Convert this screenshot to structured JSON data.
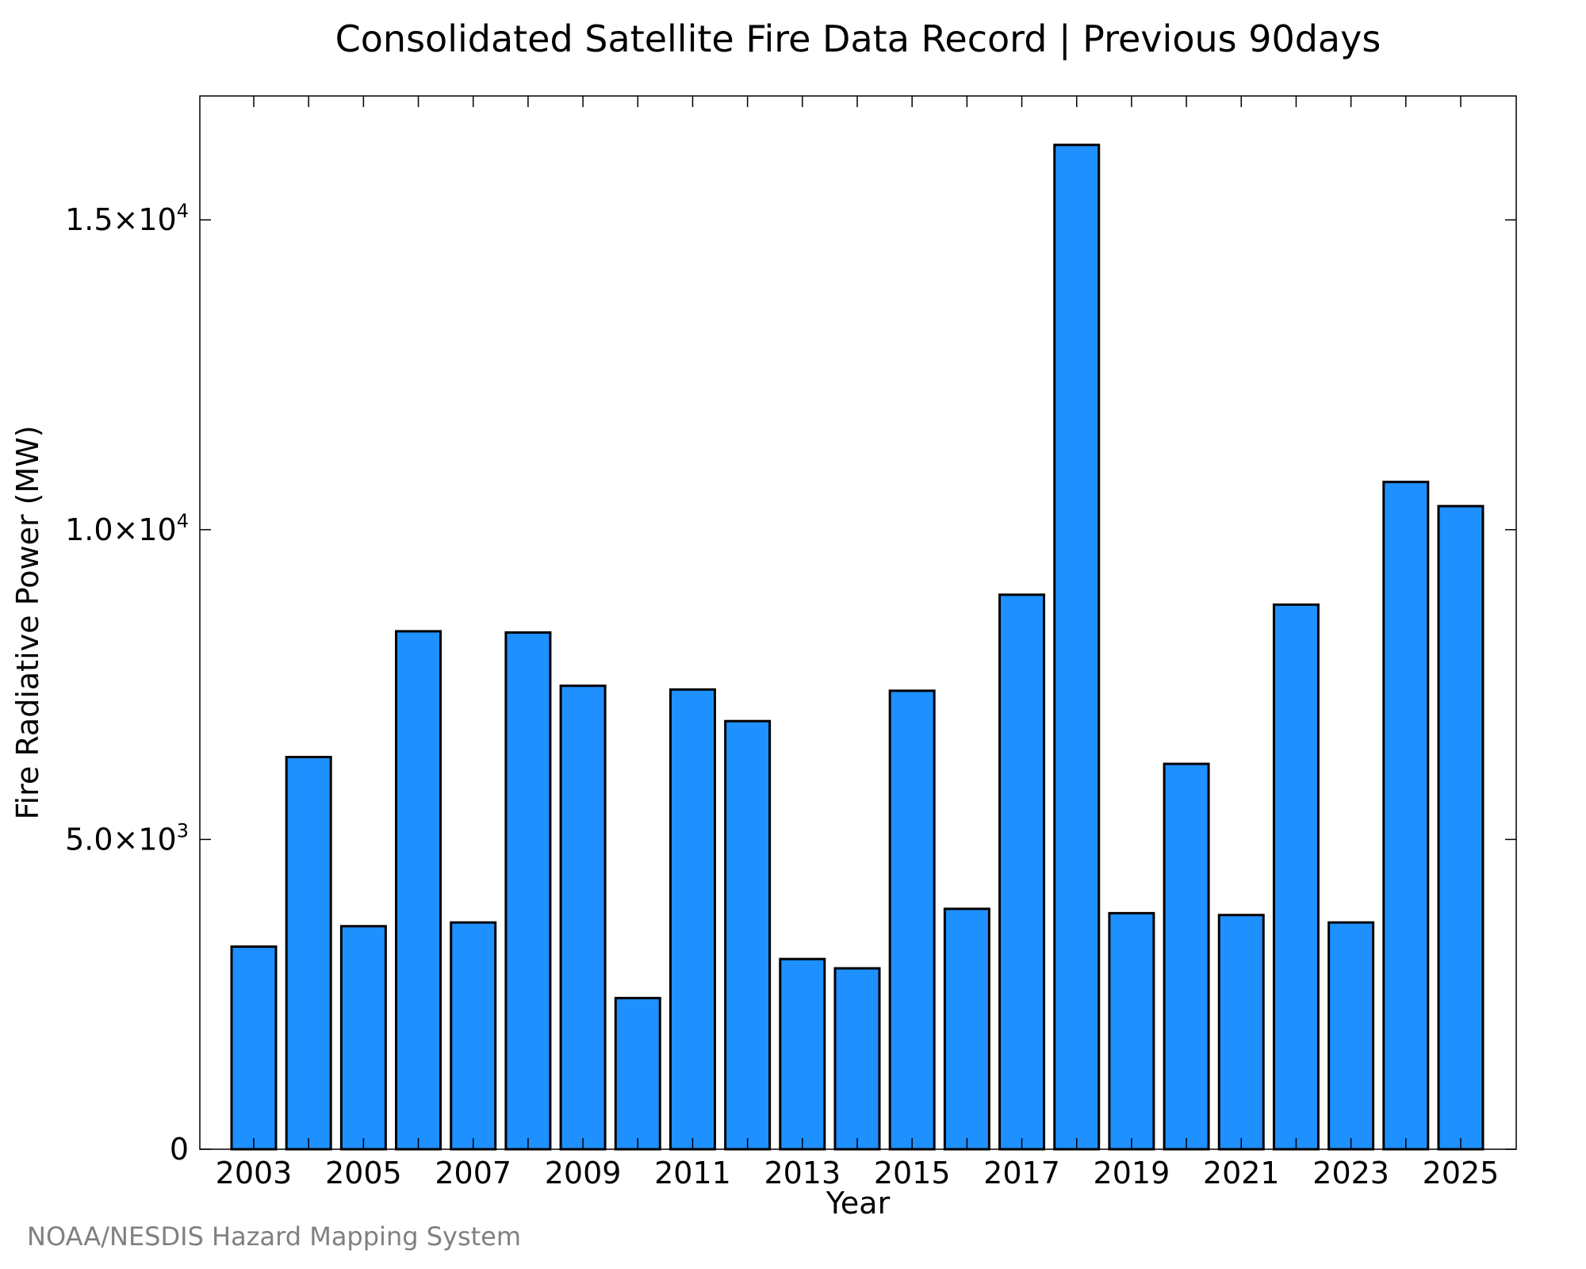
{
  "chart_data": {
    "type": "bar",
    "title": "Consolidated Satellite Fire Data Record | Previous 90days",
    "xlabel": "Year",
    "ylabel": "Fire Radiative Power (MW)",
    "categories": [
      "2003",
      "2004",
      "2005",
      "2006",
      "2007",
      "2008",
      "2009",
      "2010",
      "2011",
      "2012",
      "2013",
      "2014",
      "2015",
      "2016",
      "2017",
      "2018",
      "2019",
      "2020",
      "2021",
      "2022",
      "2023",
      "2024",
      "2025"
    ],
    "values": [
      3270,
      6330,
      3600,
      8360,
      3660,
      8340,
      7480,
      2440,
      7420,
      6910,
      3070,
      2920,
      7400,
      3880,
      8950,
      16210,
      3810,
      6220,
      3780,
      8790,
      3660,
      10770,
      10380
    ],
    "ylim": [
      0,
      17000
    ],
    "y_ticks": [
      {
        "value": 0,
        "mantissa": "0",
        "exp": ""
      },
      {
        "value": 5000,
        "mantissa": "5.0×10",
        "exp": "3"
      },
      {
        "value": 10000,
        "mantissa": "1.0×10",
        "exp": "4"
      },
      {
        "value": 15000,
        "mantissa": "1.5×10",
        "exp": "4"
      }
    ],
    "x_tick_labels": [
      "2003",
      "2005",
      "2007",
      "2009",
      "2011",
      "2013",
      "2015",
      "2017",
      "2019",
      "2021",
      "2023",
      "2025"
    ],
    "bar_color": "#1E90FF",
    "grid": false,
    "legend": "none"
  },
  "credit": "NOAA/NESDIS Hazard Mapping System"
}
